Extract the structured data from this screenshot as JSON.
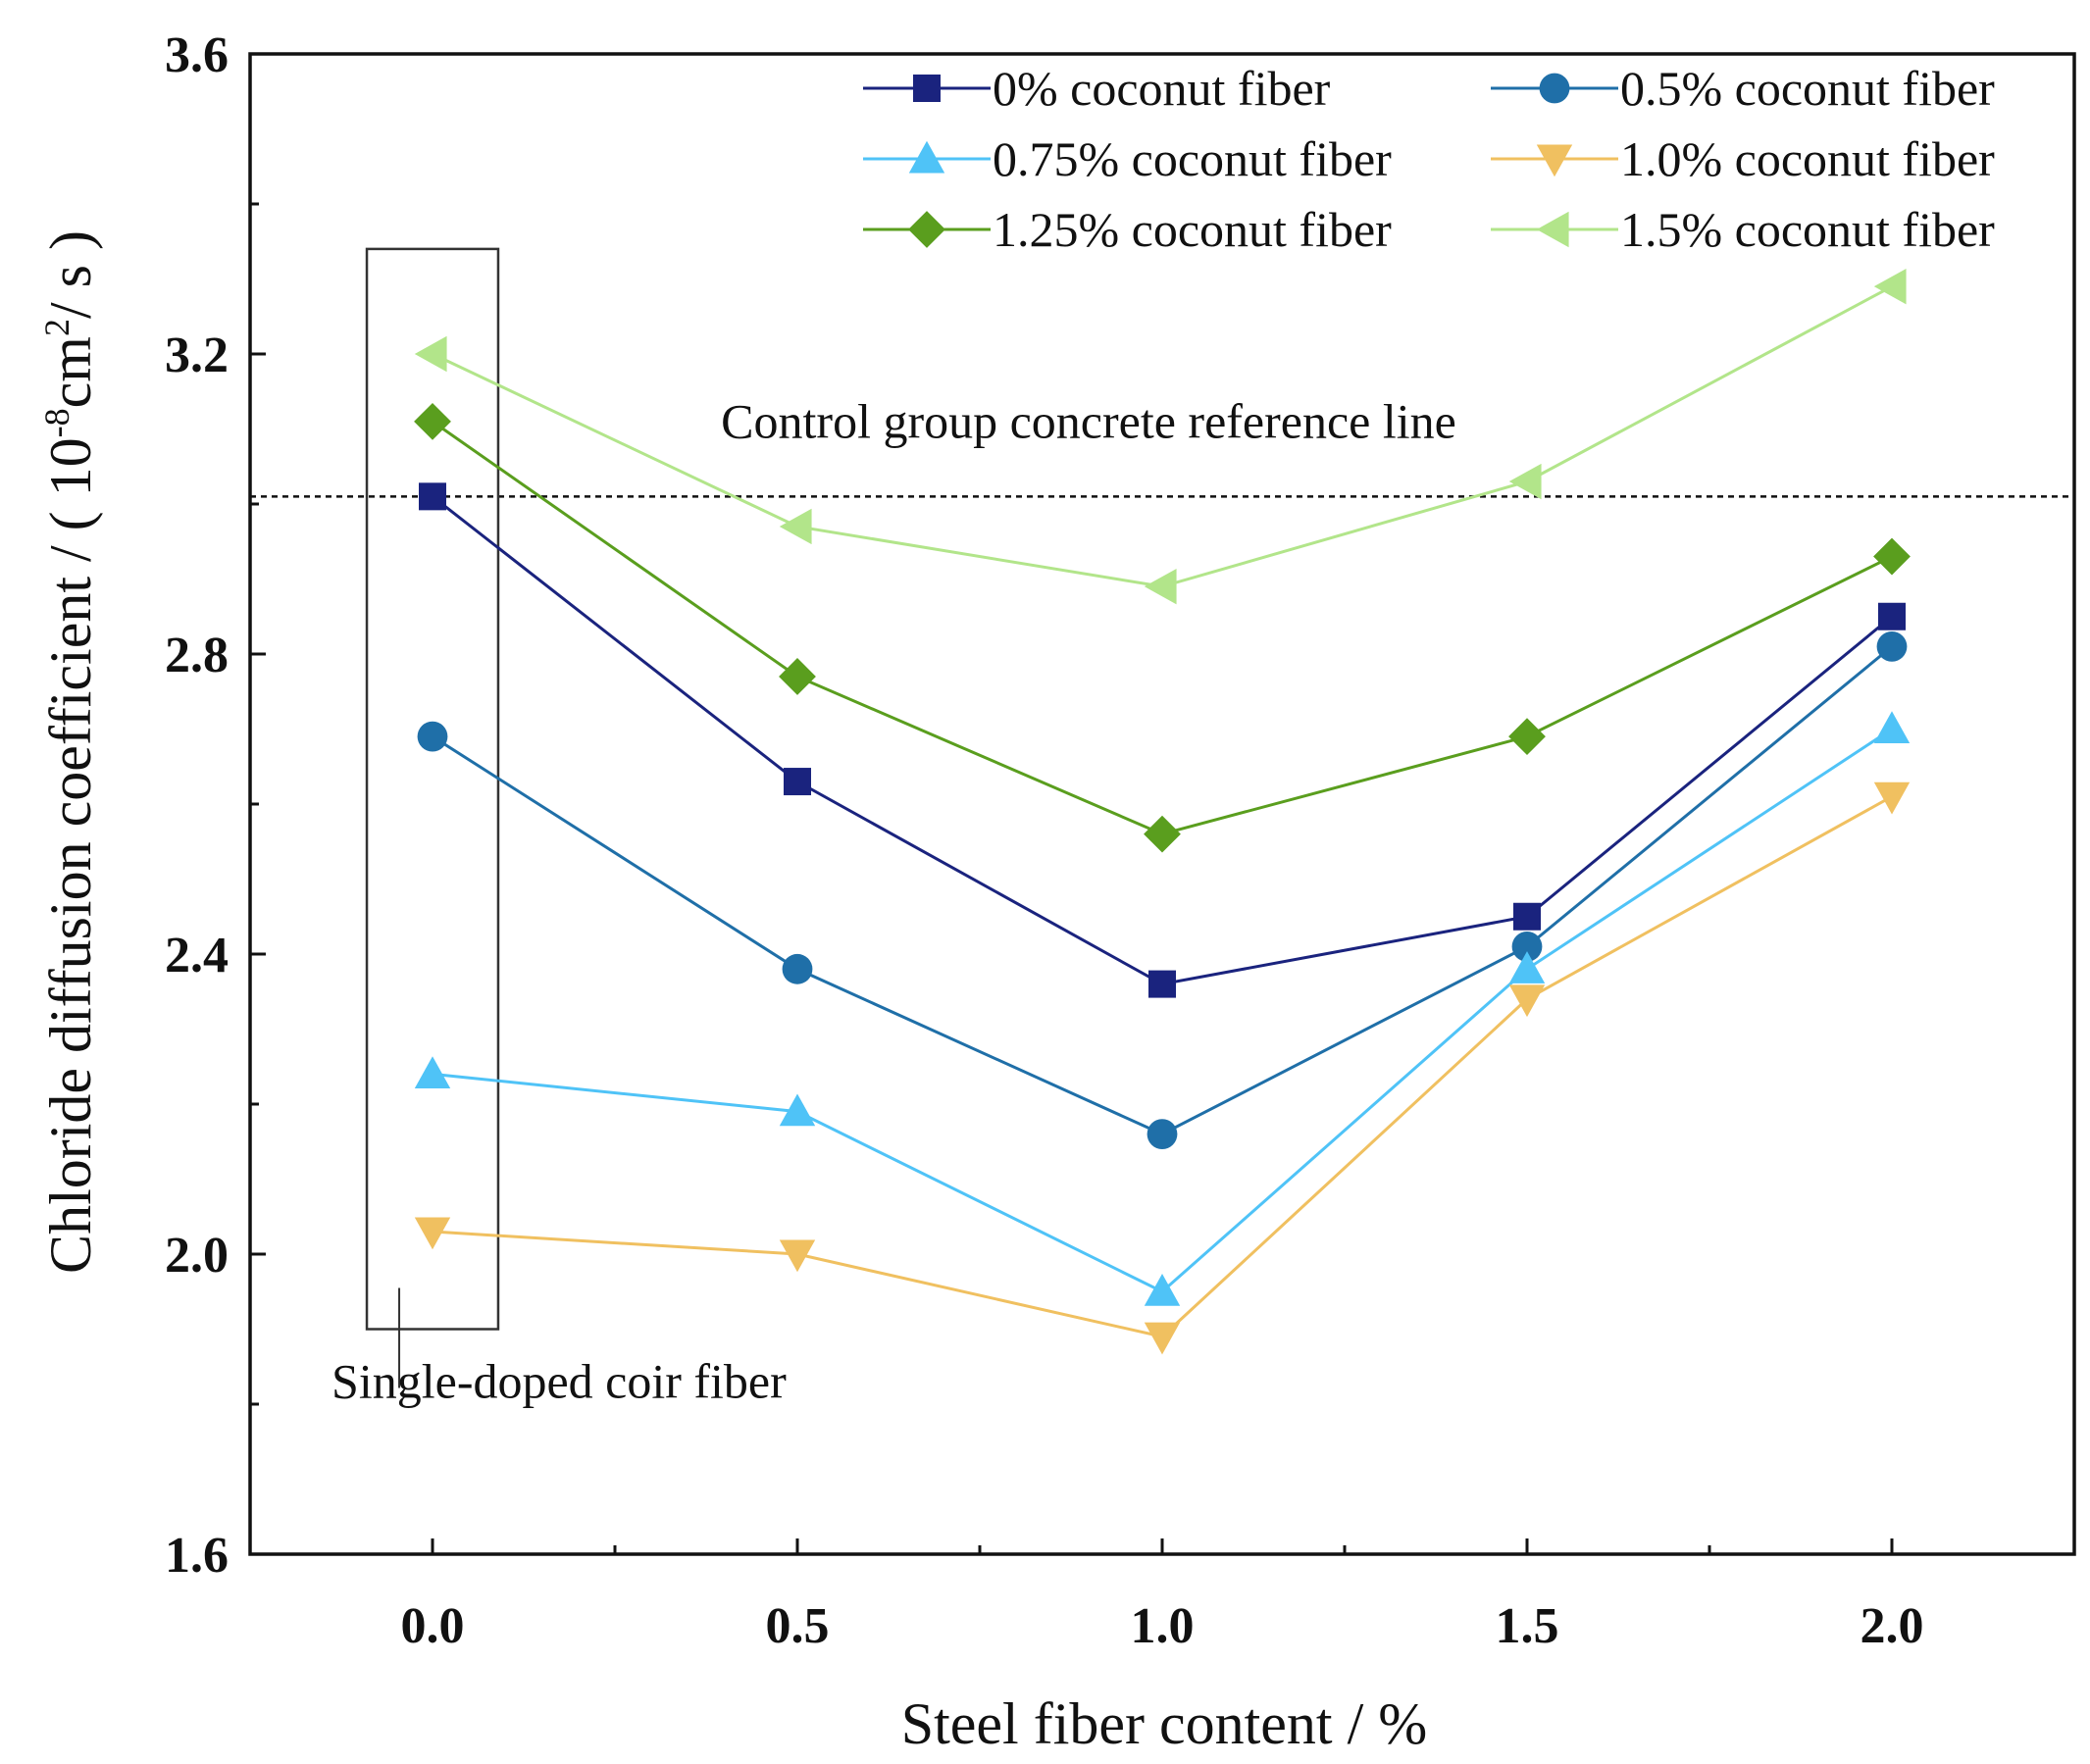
{
  "chart_data": {
    "type": "line",
    "title": "",
    "xlabel": "Steel fiber content / %",
    "ylabel": {
      "prefix": "Chloride diffusion coefficient / ( 10",
      "exp1": "-8",
      "mid": "cm",
      "exp2": "2",
      "suffix": "/ s )"
    },
    "x": [
      0.0,
      0.5,
      1.0,
      1.5,
      2.0
    ],
    "x_tick_labels": [
      "0.0",
      "0.5",
      "1.0",
      "1.5",
      "2.0"
    ],
    "y_tick_labels": [
      "1.6",
      "2.0",
      "2.4",
      "2.8",
      "3.2",
      "3.6"
    ],
    "y_ticks": [
      1.6,
      2.0,
      2.4,
      2.8,
      3.2,
      3.6
    ],
    "xlim": [
      -0.25,
      2.25
    ],
    "ylim": [
      1.6,
      3.6
    ],
    "grid": false,
    "legend_position": "top-right",
    "series": [
      {
        "name": "0% coconut fiber",
        "values": [
          3.01,
          2.63,
          2.36,
          2.45,
          2.85
        ],
        "color": "#1a237e",
        "marker": "square"
      },
      {
        "name": "0.5% coconut fiber",
        "values": [
          2.69,
          2.38,
          2.16,
          2.41,
          2.81
        ],
        "color": "#1f6fa8",
        "marker": "circle"
      },
      {
        "name": "0.75% coconut fiber",
        "values": [
          2.24,
          2.19,
          1.95,
          2.38,
          2.7
        ],
        "color": "#4fc3f7",
        "marker": "triangle-up"
      },
      {
        "name": "1.0% coconut fiber",
        "values": [
          2.03,
          2.0,
          1.89,
          2.34,
          2.61
        ],
        "color": "#f0c060",
        "marker": "triangle-down"
      },
      {
        "name": "1.25% coconut fiber",
        "values": [
          3.11,
          2.77,
          2.56,
          2.69,
          2.93
        ],
        "color": "#5a9e1e",
        "marker": "diamond"
      },
      {
        "name": "1.5% coconut fiber",
        "values": [
          3.2,
          2.97,
          2.89,
          3.03,
          3.29
        ],
        "color": "#b2e58a",
        "marker": "triangle-left"
      }
    ],
    "reference_line": {
      "label": "Control group concrete reference line",
      "value": 3.01
    },
    "annotations": [
      {
        "label": "Single-doped coir fiber",
        "x_range": [
          -0.09,
          0.09
        ],
        "y_range": [
          1.9,
          3.34
        ]
      }
    ]
  }
}
